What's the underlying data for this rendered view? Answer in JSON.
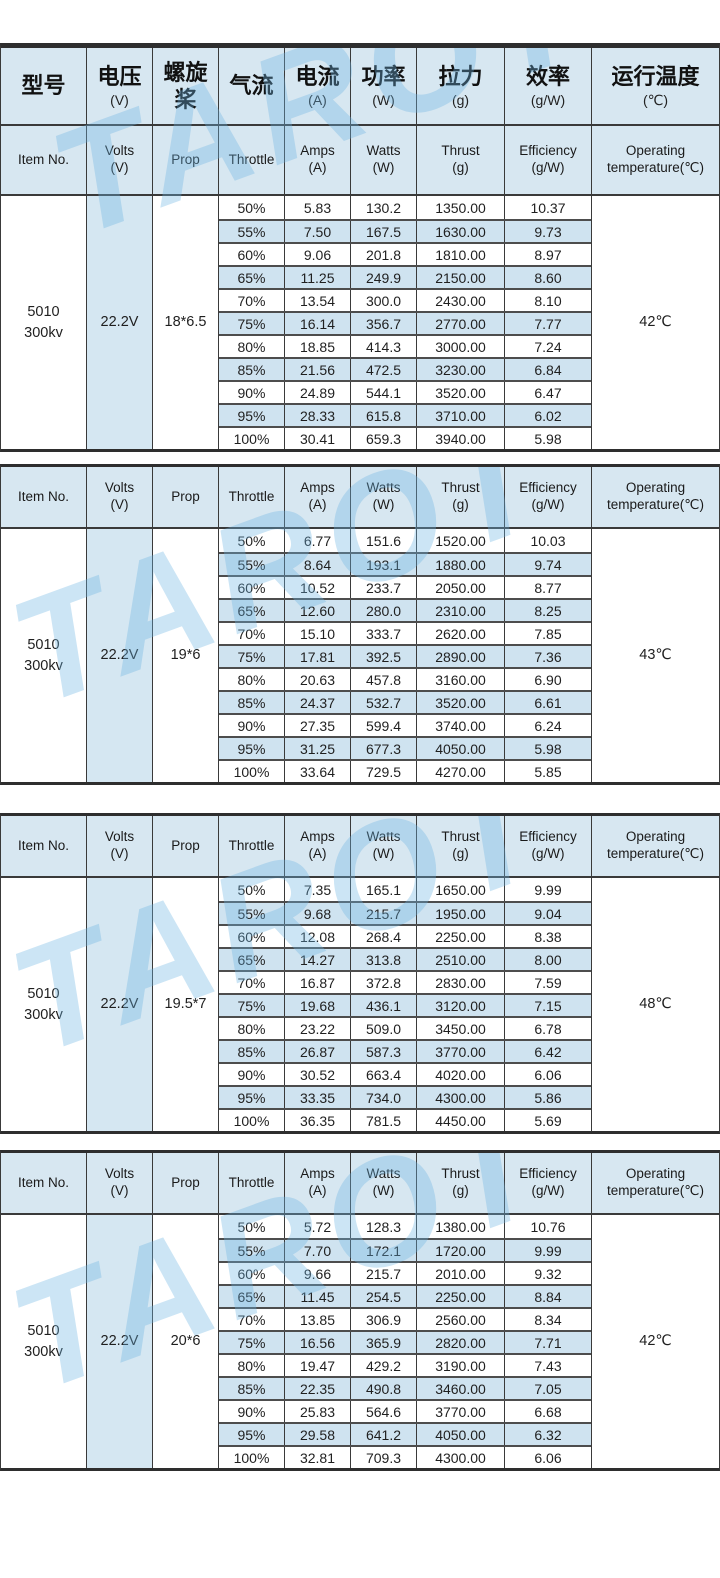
{
  "colors": {
    "header-bg": "#d7e7f1",
    "alt-bg": "#cfe3f0",
    "volts-bg": "#d5e7f2",
    "line": "#3a3a3a",
    "row-line": "#4d4d4d",
    "text": "#1f1f1f"
  },
  "watermark": "TAROT",
  "header_cn": [
    {
      "key": "model",
      "t": "型号",
      "u": ""
    },
    {
      "key": "voltage",
      "t": "电压",
      "u": "(V)"
    },
    {
      "key": "propeller",
      "t": "螺旋桨",
      "u": ""
    },
    {
      "key": "airflow",
      "t": "气流",
      "u": ""
    },
    {
      "key": "current",
      "t": "电流",
      "u": "(A)"
    },
    {
      "key": "power",
      "t": "功率",
      "u": "(W)"
    },
    {
      "key": "pull",
      "t": "拉力",
      "u": "(g)"
    },
    {
      "key": "efficiency",
      "t": "效率",
      "u": "(g/W)"
    },
    {
      "key": "operating-temperature",
      "t": "运行温度",
      "u": "(℃)"
    }
  ],
  "header_en": [
    {
      "key": "item-no",
      "t": "Item No.",
      "u": ""
    },
    {
      "key": "volts",
      "t": "Volts",
      "u": "(V)"
    },
    {
      "key": "prop",
      "t": "Prop",
      "u": ""
    },
    {
      "key": "throttle",
      "t": "Throttle",
      "u": ""
    },
    {
      "key": "amps",
      "t": "Amps",
      "u": "(A)"
    },
    {
      "key": "watts",
      "t": "Watts",
      "u": "(W)"
    },
    {
      "key": "thrust",
      "t": "Thrust",
      "u": "(g)"
    },
    {
      "key": "efficiency",
      "t": "Efficiency",
      "u": "(g/W)"
    },
    {
      "key": "operating-temperature",
      "t": "Operating",
      "u": "temperature(℃)"
    }
  ],
  "row_columns": [
    "throttle",
    "amps",
    "watts",
    "thrust",
    "efficiency"
  ],
  "sections": [
    {
      "item_line1": "5010",
      "item_line2": "300kv",
      "volts": "22.2V",
      "prop": "18*6.5",
      "temp": "42℃",
      "rows": [
        [
          "50%",
          "5.83",
          "130.2",
          "1350.00",
          "10.37"
        ],
        [
          "55%",
          "7.50",
          "167.5",
          "1630.00",
          "9.73"
        ],
        [
          "60%",
          "9.06",
          "201.8",
          "1810.00",
          "8.97"
        ],
        [
          "65%",
          "11.25",
          "249.9",
          "2150.00",
          "8.60"
        ],
        [
          "70%",
          "13.54",
          "300.0",
          "2430.00",
          "8.10"
        ],
        [
          "75%",
          "16.14",
          "356.7",
          "2770.00",
          "7.77"
        ],
        [
          "80%",
          "18.85",
          "414.3",
          "3000.00",
          "7.24"
        ],
        [
          "85%",
          "21.56",
          "472.5",
          "3230.00",
          "6.84"
        ],
        [
          "90%",
          "24.89",
          "544.1",
          "3520.00",
          "6.47"
        ],
        [
          "95%",
          "28.33",
          "615.8",
          "3710.00",
          "6.02"
        ],
        [
          "100%",
          "30.41",
          "659.3",
          "3940.00",
          "5.98"
        ]
      ]
    },
    {
      "item_line1": "5010",
      "item_line2": "300kv",
      "volts": "22.2V",
      "prop": "19*6",
      "temp": "43℃",
      "rows": [
        [
          "50%",
          "6.77",
          "151.6",
          "1520.00",
          "10.03"
        ],
        [
          "55%",
          "8.64",
          "193.1",
          "1880.00",
          "9.74"
        ],
        [
          "60%",
          "10.52",
          "233.7",
          "2050.00",
          "8.77"
        ],
        [
          "65%",
          "12.60",
          "280.0",
          "2310.00",
          "8.25"
        ],
        [
          "70%",
          "15.10",
          "333.7",
          "2620.00",
          "7.85"
        ],
        [
          "75%",
          "17.81",
          "392.5",
          "2890.00",
          "7.36"
        ],
        [
          "80%",
          "20.63",
          "457.8",
          "3160.00",
          "6.90"
        ],
        [
          "85%",
          "24.37",
          "532.7",
          "3520.00",
          "6.61"
        ],
        [
          "90%",
          "27.35",
          "599.4",
          "3740.00",
          "6.24"
        ],
        [
          "95%",
          "31.25",
          "677.3",
          "4050.00",
          "5.98"
        ],
        [
          "100%",
          "33.64",
          "729.5",
          "4270.00",
          "5.85"
        ]
      ]
    },
    {
      "item_line1": "5010",
      "item_line2": "300kv",
      "volts": "22.2V",
      "prop": "19.5*7",
      "temp": "48℃",
      "rows": [
        [
          "50%",
          "7.35",
          "165.1",
          "1650.00",
          "9.99"
        ],
        [
          "55%",
          "9.68",
          "215.7",
          "1950.00",
          "9.04"
        ],
        [
          "60%",
          "12.08",
          "268.4",
          "2250.00",
          "8.38"
        ],
        [
          "65%",
          "14.27",
          "313.8",
          "2510.00",
          "8.00"
        ],
        [
          "70%",
          "16.87",
          "372.8",
          "2830.00",
          "7.59"
        ],
        [
          "75%",
          "19.68",
          "436.1",
          "3120.00",
          "7.15"
        ],
        [
          "80%",
          "23.22",
          "509.0",
          "3450.00",
          "6.78"
        ],
        [
          "85%",
          "26.87",
          "587.3",
          "3770.00",
          "6.42"
        ],
        [
          "90%",
          "30.52",
          "663.4",
          "4020.00",
          "6.06"
        ],
        [
          "95%",
          "33.35",
          "734.0",
          "4300.00",
          "5.86"
        ],
        [
          "100%",
          "36.35",
          "781.5",
          "4450.00",
          "5.69"
        ]
      ]
    },
    {
      "item_line1": "5010",
      "item_line2": "300kv",
      "volts": "22.2V",
      "prop": "20*6",
      "temp": "42℃",
      "rows": [
        [
          "50%",
          "5.72",
          "128.3",
          "1380.00",
          "10.76"
        ],
        [
          "55%",
          "7.70",
          "172.1",
          "1720.00",
          "9.99"
        ],
        [
          "60%",
          "9.66",
          "215.7",
          "2010.00",
          "9.32"
        ],
        [
          "65%",
          "11.45",
          "254.5",
          "2250.00",
          "8.84"
        ],
        [
          "70%",
          "13.85",
          "306.9",
          "2560.00",
          "8.34"
        ],
        [
          "75%",
          "16.56",
          "365.9",
          "2820.00",
          "7.71"
        ],
        [
          "80%",
          "19.47",
          "429.2",
          "3190.00",
          "7.43"
        ],
        [
          "85%",
          "22.35",
          "490.8",
          "3460.00",
          "7.05"
        ],
        [
          "90%",
          "25.83",
          "564.6",
          "3770.00",
          "6.68"
        ],
        [
          "95%",
          "29.58",
          "641.2",
          "4050.00",
          "6.32"
        ],
        [
          "100%",
          "32.81",
          "709.3",
          "4300.00",
          "6.06"
        ]
      ]
    }
  ]
}
